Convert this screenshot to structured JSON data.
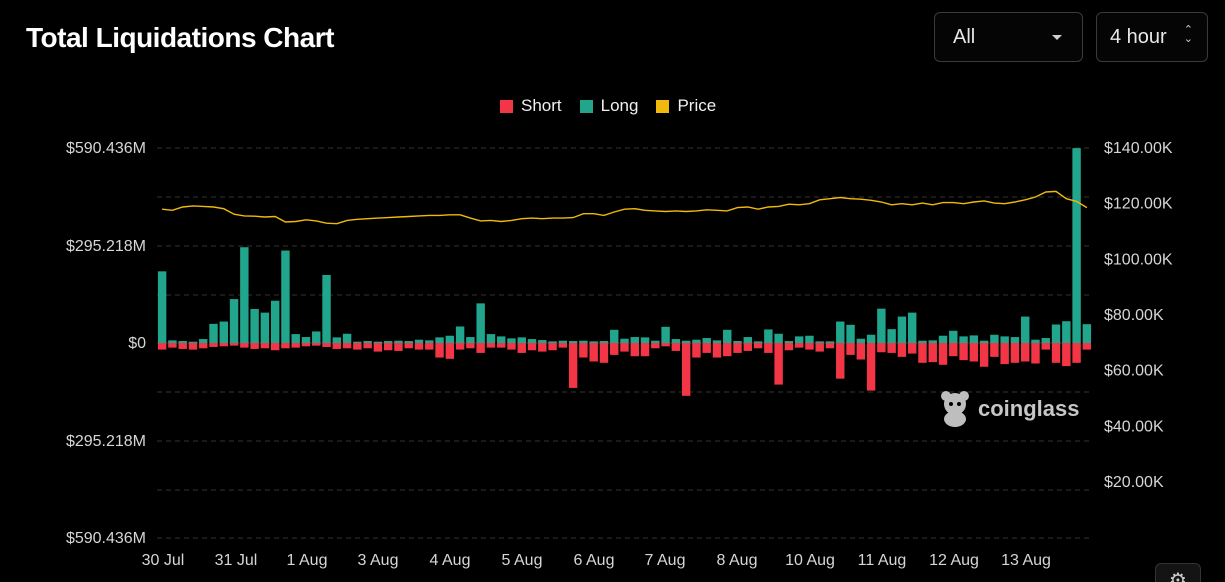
{
  "header": {
    "title": "Total Liquidations Chart",
    "range_select": {
      "value": "All"
    },
    "interval_select": {
      "value": "4 hour"
    }
  },
  "watermark": {
    "text": "coinglass"
  },
  "colors": {
    "short": "#f23645",
    "long": "#21a58d",
    "price": "#f0b90b",
    "grid": "#333333"
  },
  "icons": {
    "range_caret": "chevron-down-icon",
    "interval_caret": "up-down-icon",
    "logo": "coinglass-mascot-icon",
    "settings": "gear-icon"
  },
  "chart_data": {
    "type": "bar",
    "legend": [
      {
        "name": "Short",
        "color": "#f23645"
      },
      {
        "name": "Long",
        "color": "#21a58d"
      },
      {
        "name": "Price",
        "color": "#f0b90b"
      }
    ],
    "legend_position": "top-center",
    "grid": true,
    "left_axis": {
      "ticks": [
        "$590.436M",
        "$295.218M",
        "$0",
        "$295.218M",
        "$590.436M"
      ],
      "range": [
        -590.436,
        590.436
      ],
      "unit": "M USD"
    },
    "right_axis": {
      "ticks": [
        "$140.00K",
        "$120.00K",
        "$100.00K",
        "$80.00K",
        "$60.00K",
        "$40.00K",
        "$20.00K"
      ],
      "range": [
        0,
        140
      ]
    },
    "x_ticks": [
      "30 Jul",
      "31 Jul",
      "1 Aug",
      "3 Aug",
      "4 Aug",
      "5 Aug",
      "6 Aug",
      "7 Aug",
      "8 Aug",
      "10 Aug",
      "11 Aug",
      "12 Aug",
      "13 Aug"
    ],
    "series": [
      {
        "name": "Long",
        "values": [
          217,
          8,
          6,
          4,
          12,
          58,
          65,
          133,
          290,
          103,
          92,
          128,
          280,
          27,
          18,
          35,
          206,
          17,
          28,
          4,
          6,
          4,
          6,
          7,
          6,
          10,
          8,
          17,
          22,
          50,
          18,
          120,
          27,
          20,
          14,
          17,
          12,
          9,
          5,
          7,
          6,
          7,
          5,
          6,
          40,
          13,
          18,
          17,
          7,
          49,
          12,
          7,
          10,
          15,
          8,
          40,
          6,
          18,
          5,
          41,
          28,
          6,
          20,
          22,
          5,
          5,
          65,
          55,
          13,
          25,
          104,
          42,
          80,
          92,
          7,
          8,
          22,
          37,
          20,
          23,
          7,
          25,
          20,
          18,
          80,
          10,
          15,
          56,
          66,
          590,
          57
        ]
      },
      {
        "name": "Short",
        "values": [
          20,
          14,
          18,
          20,
          16,
          12,
          10,
          8,
          14,
          18,
          16,
          22,
          16,
          14,
          10,
          8,
          12,
          18,
          16,
          20,
          16,
          26,
          22,
          24,
          16,
          20,
          20,
          44,
          48,
          20,
          16,
          30,
          14,
          14,
          20,
          30,
          22,
          26,
          22,
          14,
          136,
          44,
          56,
          60,
          36,
          26,
          40,
          40,
          16,
          10,
          24,
          160,
          44,
          30,
          44,
          40,
          30,
          24,
          16,
          30,
          126,
          22,
          14,
          20,
          26,
          16,
          108,
          36,
          50,
          144,
          28,
          30,
          42,
          32,
          60,
          58,
          66,
          40,
          52,
          56,
          72,
          42,
          64,
          60,
          56,
          62,
          20,
          60,
          70,
          60,
          20
        ]
      },
      {
        "name": "Price",
        "unit": "K USD",
        "values": [
          118.0,
          117.6,
          118.8,
          119.2,
          119.0,
          118.8,
          118.2,
          116.2,
          115.6,
          115.5,
          115.2,
          115.4,
          113.4,
          113.6,
          114.2,
          113.8,
          113.0,
          112.8,
          114.0,
          114.4,
          114.6,
          114.8,
          115.0,
          115.2,
          115.4,
          115.6,
          115.8,
          115.8,
          116.0,
          116.0,
          114.8,
          113.8,
          114.0,
          113.6,
          114.0,
          114.6,
          114.8,
          114.6,
          114.8,
          114.8,
          115.0,
          116.4,
          116.4,
          115.8,
          117.0,
          118.0,
          118.2,
          117.6,
          117.4,
          117.2,
          117.4,
          117.2,
          117.4,
          117.8,
          117.6,
          117.4,
          118.6,
          118.8,
          118.0,
          118.8,
          119.0,
          119.8,
          119.6,
          120.0,
          121.4,
          121.8,
          122.2,
          121.8,
          121.6,
          121.2,
          120.6,
          119.6,
          120.0,
          119.6,
          120.2,
          119.6,
          120.4,
          120.4,
          120.0,
          120.6,
          121.0,
          120.2,
          120.0,
          120.6,
          121.4,
          122.4,
          124.2,
          124.4,
          121.8,
          120.8,
          118.6
        ]
      }
    ]
  }
}
